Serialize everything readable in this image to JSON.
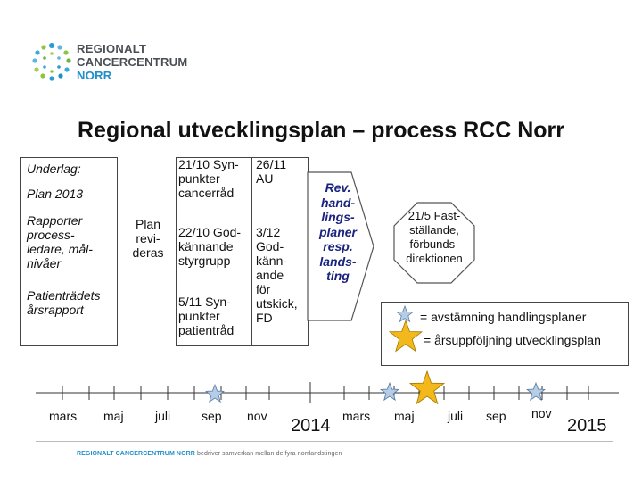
{
  "logo": {
    "line1": "REGIONALT",
    "line2": "CANCERCENTRUM",
    "line3": "NORR",
    "accent_color": "#1f8fc7"
  },
  "title": "Regional utvecklingsplan – process RCC Norr",
  "left_box": {
    "underlag": "Underlag:",
    "plan2013": "Plan 2013",
    "rapporter": [
      "Rapporter",
      "process-",
      "ledare, mål-",
      "nivåer"
    ],
    "patientradet": [
      "Patienträdets",
      "årsrapport"
    ]
  },
  "plan_reviderad": [
    "Plan",
    "revi-",
    "deras"
  ],
  "col1": {
    "item1": [
      "21/10 Syn-",
      "punkter",
      "cancerråd"
    ],
    "item2": [
      "22/10 God-",
      "kännande",
      "styrgrupp"
    ],
    "item3": [
      "5/11 Syn-",
      "punkter",
      "patientråd"
    ]
  },
  "col2": {
    "item1": [
      "26/11",
      "AU"
    ],
    "item2": [
      "3/12",
      "God-",
      "känn-",
      "ande",
      "för",
      "utskick,",
      "FD"
    ]
  },
  "arrow_text": [
    "Rev.",
    "hand-",
    "lings-",
    "planer",
    "resp.",
    "lands-",
    "ting"
  ],
  "arrow_color": "#1a237e",
  "decision_text": [
    "21/5 Fast-",
    "ställande,",
    "förbunds-",
    "direktionen"
  ],
  "legend": {
    "small_star": "= avstämning handlingsplaner",
    "big_star": "= årsuppföljning utvecklingsplan",
    "small_star_color": "#b7cde6",
    "big_star_color": "#f2b81c"
  },
  "timeline": {
    "months": [
      "mars",
      "maj",
      "juli",
      "sep",
      "nov",
      "mars",
      "maj",
      "juli",
      "sep",
      "nov"
    ],
    "years": [
      "2014",
      "2015"
    ]
  },
  "footer": {
    "brand": "REGIONALT CANCERCENTRUM NORR",
    "tagline": " bedriver samverkan mellan de fyra norrlandstingen"
  }
}
